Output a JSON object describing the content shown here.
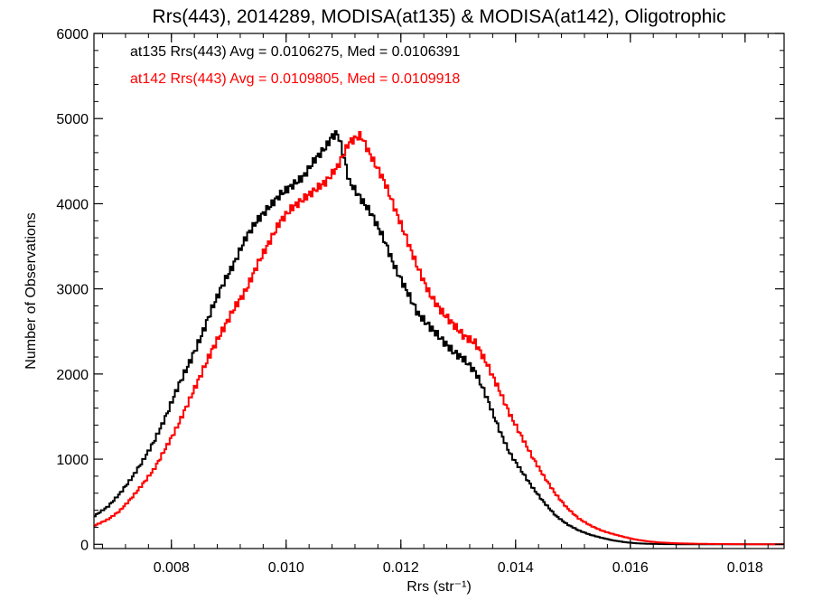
{
  "chart_data": {
    "type": "step-histogram",
    "title": "Rrs(443), 2014289, MODISA(at135) & MODISA(at142), Oligotrophic",
    "xlabel": "Rrs (str⁻¹)",
    "ylabel": "Number of Observations",
    "xlim": [
      0.00665,
      0.01868
    ],
    "ylim": [
      -50,
      6000
    ],
    "xticks": [
      0.008,
      0.01,
      0.012,
      0.014,
      0.016,
      0.018
    ],
    "xtick_labels": [
      "0.008",
      "0.010",
      "0.012",
      "0.014",
      "0.016",
      "0.018"
    ],
    "yticks": [
      0,
      1000,
      2000,
      3000,
      4000,
      5000,
      6000
    ],
    "ytick_labels": [
      "0",
      "1000",
      "2000",
      "3000",
      "4000",
      "5000",
      "6000"
    ],
    "legend_placement": "top-left",
    "series": [
      {
        "name": "at135",
        "color": "#000000",
        "legend": "at135 Rrs(443) Avg = 0.0106275, Med = 0.0106391",
        "points": [
          [
            0.00665,
            330
          ],
          [
            0.0069,
            450
          ],
          [
            0.0071,
            600
          ],
          [
            0.0073,
            780
          ],
          [
            0.0075,
            990
          ],
          [
            0.0077,
            1230
          ],
          [
            0.0079,
            1520
          ],
          [
            0.0081,
            1860
          ],
          [
            0.0083,
            2150
          ],
          [
            0.0085,
            2450
          ],
          [
            0.0087,
            2800
          ],
          [
            0.0089,
            3100
          ],
          [
            0.0091,
            3350
          ],
          [
            0.0093,
            3650
          ],
          [
            0.0095,
            3850
          ],
          [
            0.0097,
            4000
          ],
          [
            0.0099,
            4150
          ],
          [
            0.0101,
            4250
          ],
          [
            0.0103,
            4350
          ],
          [
            0.0105,
            4550
          ],
          [
            0.0107,
            4700
          ],
          [
            0.0108,
            4820
          ],
          [
            0.0109,
            4850
          ],
          [
            0.011,
            4600
          ],
          [
            0.0111,
            4280
          ],
          [
            0.0113,
            4080
          ],
          [
            0.0115,
            3880
          ],
          [
            0.0117,
            3600
          ],
          [
            0.0119,
            3250
          ],
          [
            0.0121,
            2980
          ],
          [
            0.0123,
            2700
          ],
          [
            0.0125,
            2550
          ],
          [
            0.0127,
            2400
          ],
          [
            0.0129,
            2250
          ],
          [
            0.0131,
            2150
          ],
          [
            0.0133,
            2000
          ],
          [
            0.0135,
            1700
          ],
          [
            0.0137,
            1350
          ],
          [
            0.0139,
            1050
          ],
          [
            0.0141,
            850
          ],
          [
            0.0143,
            650
          ],
          [
            0.0145,
            480
          ],
          [
            0.0147,
            330
          ],
          [
            0.0149,
            230
          ],
          [
            0.0151,
            160
          ],
          [
            0.0153,
            110
          ],
          [
            0.0155,
            75
          ],
          [
            0.0157,
            45
          ],
          [
            0.0159,
            25
          ],
          [
            0.0161,
            12
          ],
          [
            0.0163,
            6
          ],
          [
            0.0166,
            2
          ],
          [
            0.017,
            0
          ],
          [
            0.01868,
            0
          ]
        ]
      },
      {
        "name": "at142",
        "color": "#ff0000",
        "legend": "at142 Rrs(443) Avg = 0.0109805, Med = 0.0109918",
        "points": [
          [
            0.00665,
            220
          ],
          [
            0.0069,
            300
          ],
          [
            0.0071,
            400
          ],
          [
            0.0073,
            550
          ],
          [
            0.0075,
            720
          ],
          [
            0.0077,
            900
          ],
          [
            0.0079,
            1150
          ],
          [
            0.0081,
            1400
          ],
          [
            0.0083,
            1700
          ],
          [
            0.0085,
            2000
          ],
          [
            0.0087,
            2300
          ],
          [
            0.0089,
            2550
          ],
          [
            0.0091,
            2800
          ],
          [
            0.0093,
            3000
          ],
          [
            0.0095,
            3300
          ],
          [
            0.0097,
            3550
          ],
          [
            0.0099,
            3800
          ],
          [
            0.0101,
            3950
          ],
          [
            0.0103,
            4050
          ],
          [
            0.0105,
            4150
          ],
          [
            0.0107,
            4250
          ],
          [
            0.0109,
            4420
          ],
          [
            0.0111,
            4700
          ],
          [
            0.0113,
            4780
          ],
          [
            0.0115,
            4500
          ],
          [
            0.0117,
            4250
          ],
          [
            0.0119,
            3900
          ],
          [
            0.0121,
            3550
          ],
          [
            0.0123,
            3200
          ],
          [
            0.0125,
            2900
          ],
          [
            0.0127,
            2700
          ],
          [
            0.0129,
            2550
          ],
          [
            0.0131,
            2400
          ],
          [
            0.0133,
            2320
          ],
          [
            0.0135,
            2080
          ],
          [
            0.0137,
            1800
          ],
          [
            0.0139,
            1500
          ],
          [
            0.0141,
            1250
          ],
          [
            0.0143,
            1000
          ],
          [
            0.0145,
            780
          ],
          [
            0.0147,
            580
          ],
          [
            0.0149,
            420
          ],
          [
            0.0151,
            300
          ],
          [
            0.0153,
            220
          ],
          [
            0.0155,
            160
          ],
          [
            0.0157,
            120
          ],
          [
            0.0159,
            85
          ],
          [
            0.0161,
            55
          ],
          [
            0.0163,
            35
          ],
          [
            0.0165,
            22
          ],
          [
            0.0168,
            12
          ],
          [
            0.0172,
            6
          ],
          [
            0.0176,
            3
          ],
          [
            0.018,
            1
          ],
          [
            0.0184,
            0
          ],
          [
            0.01868,
            0
          ]
        ]
      }
    ]
  }
}
